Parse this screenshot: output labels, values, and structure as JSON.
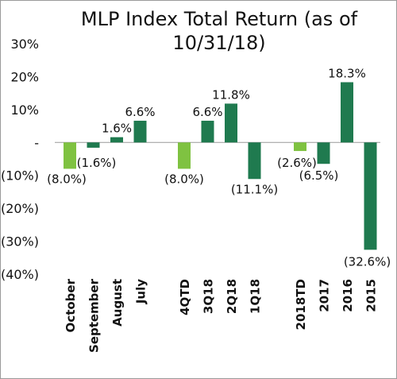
{
  "chart_data": {
    "type": "bar",
    "title": "MLP Index Total Return (as of 10/31/18)",
    "xlabel": "",
    "ylabel": "",
    "ylim": [
      -40,
      30
    ],
    "grid": false,
    "yticks": [
      {
        "value": 30,
        "label": "30%"
      },
      {
        "value": 20,
        "label": "20%"
      },
      {
        "value": 10,
        "label": "10%"
      },
      {
        "value": 0,
        "label": "-"
      },
      {
        "value": -10,
        "label": "(10%)"
      },
      {
        "value": -20,
        "label": "(20%)"
      },
      {
        "value": -30,
        "label": "(30%)"
      },
      {
        "value": -40,
        "label": "(40%)"
      }
    ],
    "groups": [
      {
        "bars": [
          {
            "category": "October",
            "value": -8.0,
            "label": "(8.0%)",
            "color": "#7fc241"
          },
          {
            "category": "September",
            "value": -1.6,
            "label": "(1.6%)",
            "color": "#1f7a4f"
          },
          {
            "category": "August",
            "value": 1.6,
            "label": "1.6%",
            "color": "#1f7a4f"
          },
          {
            "category": "July",
            "value": 6.6,
            "label": "6.6%",
            "color": "#1f7a4f"
          }
        ]
      },
      {
        "bars": [
          {
            "category": "4QTD",
            "value": -8.0,
            "label": "(8.0%)",
            "color": "#7fc241"
          },
          {
            "category": "3Q18",
            "value": 6.6,
            "label": "6.6%",
            "color": "#1f7a4f"
          },
          {
            "category": "2Q18",
            "value": 11.8,
            "label": "11.8%",
            "color": "#1f7a4f"
          },
          {
            "category": "1Q18",
            "value": -11.1,
            "label": "(11.1%)",
            "color": "#1f7a4f"
          }
        ]
      },
      {
        "bars": [
          {
            "category": "2018TD",
            "value": -2.6,
            "label": "(2.6%)",
            "color": "#7fc241"
          },
          {
            "category": "2017",
            "value": -6.5,
            "label": "(6.5%)",
            "color": "#1f7a4f"
          },
          {
            "category": "2016",
            "value": 18.3,
            "label": "18.3%",
            "color": "#1f7a4f"
          },
          {
            "category": "2015",
            "value": -32.6,
            "label": "(32.6%)",
            "color": "#1f7a4f"
          }
        ]
      }
    ]
  }
}
